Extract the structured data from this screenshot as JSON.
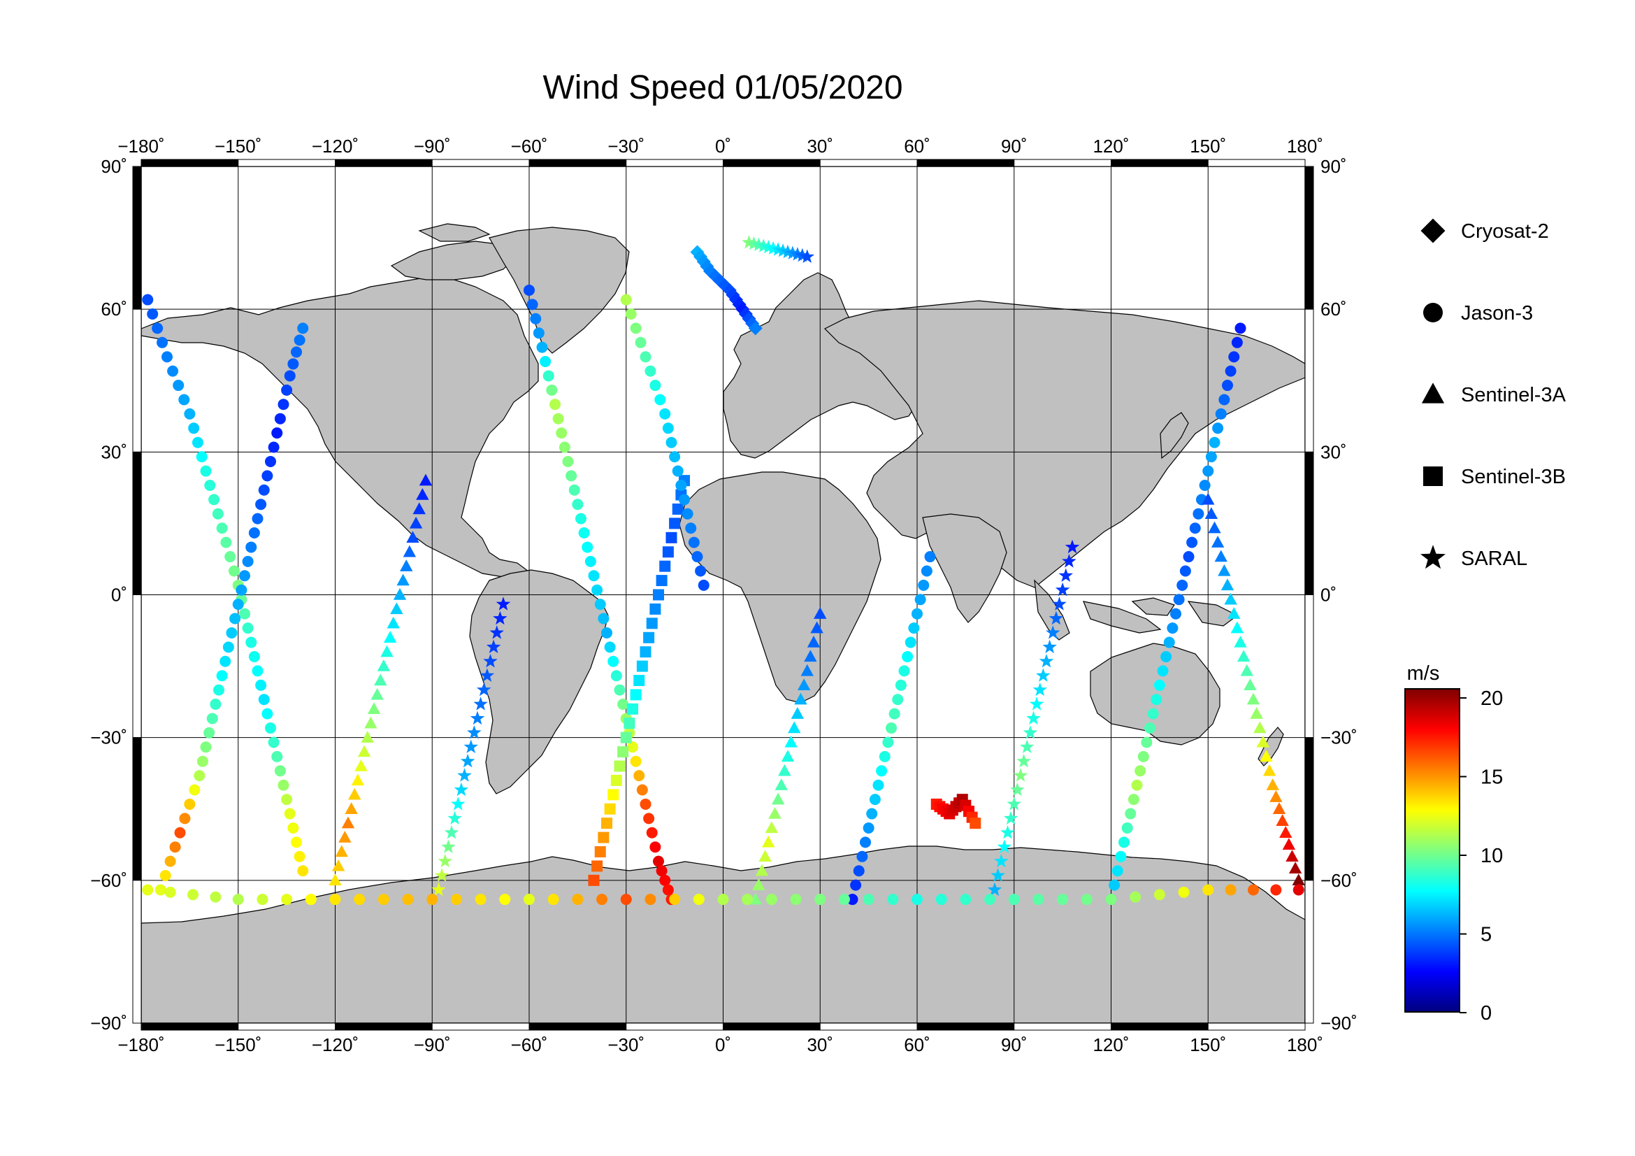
{
  "title": "Wind Speed 01/05/2020",
  "map": {
    "projection": "equirectangular",
    "lon_range": [
      -180,
      180
    ],
    "lat_range": [
      -90,
      90
    ],
    "land_color": "#c0c0c0",
    "ocean_color": "#ffffff",
    "grid": true
  },
  "axes": {
    "lon_ticks": [
      {
        "value": -180,
        "label": "−180˚"
      },
      {
        "value": -150,
        "label": "−150˚"
      },
      {
        "value": -120,
        "label": "−120˚"
      },
      {
        "value": -90,
        "label": "−90˚"
      },
      {
        "value": -60,
        "label": "−60˚"
      },
      {
        "value": -30,
        "label": "−30˚"
      },
      {
        "value": 0,
        "label": "0˚"
      },
      {
        "value": 30,
        "label": "30˚"
      },
      {
        "value": 60,
        "label": "60˚"
      },
      {
        "value": 90,
        "label": "90˚"
      },
      {
        "value": 120,
        "label": "120˚"
      },
      {
        "value": 150,
        "label": "150˚"
      },
      {
        "value": 180,
        "label": "180˚"
      }
    ],
    "lat_ticks": [
      {
        "value": 90,
        "label": "90˚"
      },
      {
        "value": 60,
        "label": "60˚"
      },
      {
        "value": 30,
        "label": "30˚"
      },
      {
        "value": 0,
        "label": "0˚"
      },
      {
        "value": -30,
        "label": "−30˚"
      },
      {
        "value": -60,
        "label": "−60˚"
      },
      {
        "value": -90,
        "label": "−90˚"
      }
    ]
  },
  "legend": [
    {
      "name": "Cryosat-2",
      "symbol": "diamond"
    },
    {
      "name": "Jason-3",
      "symbol": "circle"
    },
    {
      "name": "Sentinel-3A",
      "symbol": "triangle"
    },
    {
      "name": "Sentinel-3B",
      "symbol": "square"
    },
    {
      "name": "SARAL",
      "symbol": "star"
    }
  ],
  "colorbar": {
    "unit": "m/s",
    "min": 0,
    "max": 20,
    "ticks": [
      {
        "value": 20,
        "label": "20"
      },
      {
        "value": 15,
        "label": "15"
      },
      {
        "value": 10,
        "label": "10"
      },
      {
        "value": 5,
        "label": "5"
      },
      {
        "value": 0,
        "label": "0"
      }
    ],
    "colormap": [
      "#00007f",
      "#0000ff",
      "#007fff",
      "#00ffff",
      "#7fff7f",
      "#ffff00",
      "#ff7f00",
      "#ff0000",
      "#7f0000"
    ]
  },
  "chart_data": {
    "type": "scatter",
    "title": "Wind Speed 01/05/2020",
    "xlabel": "",
    "ylabel": "",
    "xlim": [
      -180,
      180
    ],
    "ylim": [
      -90,
      90
    ],
    "value_unit": "m/s",
    "tracks": [
      {
        "satellite": "Jason-3",
        "symbol": "circle",
        "points": [
          [
            -178,
            62,
            4
          ],
          [
            -172,
            50,
            5
          ],
          [
            -165,
            38,
            6
          ],
          [
            -160,
            26,
            8
          ],
          [
            -155,
            14,
            9
          ],
          [
            -150,
            2,
            10
          ],
          [
            -146,
            -10,
            8
          ],
          [
            -142,
            -22,
            7
          ],
          [
            -138,
            -34,
            9
          ],
          [
            -134,
            -46,
            12
          ],
          [
            -130,
            -58,
            13
          ]
        ]
      },
      {
        "satellite": "Jason-3",
        "symbol": "circle",
        "points": [
          [
            -174,
            -62,
            12
          ],
          [
            -168,
            -50,
            16
          ],
          [
            -162,
            -38,
            11
          ],
          [
            -158,
            -26,
            9
          ],
          [
            -154,
            -14,
            7
          ],
          [
            -150,
            -2,
            6
          ],
          [
            -146,
            10,
            5
          ],
          [
            -142,
            22,
            4
          ],
          [
            -138,
            34,
            3
          ],
          [
            -134,
            46,
            4
          ],
          [
            -130,
            56,
            5
          ]
        ]
      },
      {
        "satellite": "Sentinel-3A",
        "symbol": "triangle",
        "points": [
          [
            -120,
            -60,
            13
          ],
          [
            -116,
            -48,
            15
          ],
          [
            -112,
            -36,
            12
          ],
          [
            -108,
            -24,
            10
          ],
          [
            -104,
            -12,
            8
          ],
          [
            -100,
            0,
            6
          ],
          [
            -96,
            12,
            4
          ],
          [
            -92,
            24,
            3
          ]
        ]
      },
      {
        "satellite": "SARAL",
        "symbol": "star",
        "points": [
          [
            -88,
            -62,
            12
          ],
          [
            -84,
            -50,
            9
          ],
          [
            -80,
            -38,
            6
          ],
          [
            -76,
            -26,
            5
          ],
          [
            -72,
            -14,
            4
          ],
          [
            -68,
            -2,
            3
          ]
        ]
      },
      {
        "satellite": "Jason-3",
        "symbol": "circle",
        "points": [
          [
            -60,
            64,
            4
          ],
          [
            -56,
            52,
            6
          ],
          [
            -52,
            40,
            11
          ],
          [
            -48,
            28,
            10
          ],
          [
            -44,
            16,
            8
          ],
          [
            -40,
            4,
            7
          ],
          [
            -36,
            -8,
            6
          ],
          [
            -32,
            -20,
            9
          ],
          [
            -28,
            -32,
            12
          ],
          [
            -24,
            -44,
            16
          ],
          [
            -20,
            -56,
            18
          ],
          [
            -16,
            -64,
            17
          ]
        ]
      },
      {
        "satellite": "Sentinel-3B",
        "symbol": "square",
        "points": [
          [
            -40,
            -60,
            16
          ],
          [
            -36,
            -48,
            14
          ],
          [
            -32,
            -36,
            11
          ],
          [
            -28,
            -24,
            8
          ],
          [
            -24,
            -12,
            6
          ],
          [
            -20,
            0,
            5
          ],
          [
            -16,
            12,
            4
          ],
          [
            -12,
            24,
            5
          ]
        ]
      },
      {
        "satellite": "Jason-3",
        "symbol": "circle",
        "points": [
          [
            -30,
            62,
            11
          ],
          [
            -24,
            50,
            9
          ],
          [
            -18,
            38,
            7
          ],
          [
            -14,
            26,
            6
          ],
          [
            -10,
            14,
            5
          ],
          [
            -6,
            2,
            4
          ]
        ]
      },
      {
        "satellite": "Sentinel-3A",
        "symbol": "triangle",
        "points": [
          [
            10,
            -64,
            10
          ],
          [
            14,
            -52,
            12
          ],
          [
            18,
            -40,
            9
          ],
          [
            22,
            -28,
            7
          ],
          [
            26,
            -16,
            5
          ],
          [
            30,
            -4,
            4
          ]
        ]
      },
      {
        "satellite": "Jason-3",
        "symbol": "circle",
        "points": [
          [
            40,
            -64,
            3
          ],
          [
            44,
            -52,
            5
          ],
          [
            48,
            -40,
            7
          ],
          [
            52,
            -28,
            9
          ],
          [
            56,
            -16,
            8
          ],
          [
            60,
            -4,
            6
          ],
          [
            64,
            8,
            5
          ]
        ]
      },
      {
        "satellite": "Sentinel-3B",
        "symbol": "square",
        "points": [
          [
            66,
            -44,
            17
          ],
          [
            70,
            -46,
            18
          ],
          [
            74,
            -43,
            19
          ],
          [
            78,
            -48,
            16
          ]
        ]
      },
      {
        "satellite": "SARAL",
        "symbol": "star",
        "points": [
          [
            84,
            -62,
            6
          ],
          [
            88,
            -50,
            8
          ],
          [
            92,
            -38,
            10
          ],
          [
            96,
            -26,
            8
          ],
          [
            100,
            -14,
            6
          ],
          [
            104,
            -2,
            4
          ],
          [
            108,
            10,
            3
          ]
        ]
      },
      {
        "satellite": "Jason-3",
        "symbol": "circle",
        "points": [
          [
            120,
            -64,
            6
          ],
          [
            124,
            -52,
            8
          ],
          [
            128,
            -40,
            11
          ],
          [
            132,
            -28,
            9
          ],
          [
            136,
            -16,
            7
          ],
          [
            140,
            -4,
            5
          ],
          [
            144,
            8,
            4
          ],
          [
            148,
            20,
            5
          ],
          [
            152,
            32,
            6
          ],
          [
            156,
            44,
            4
          ],
          [
            160,
            56,
            3
          ]
        ]
      },
      {
        "satellite": "Sentinel-3A",
        "symbol": "triangle",
        "points": [
          [
            178,
            -60,
            20
          ],
          [
            174,
            -50,
            17
          ],
          [
            170,
            -40,
            14
          ],
          [
            166,
            -28,
            11
          ],
          [
            162,
            -16,
            9
          ],
          [
            158,
            -4,
            7
          ],
          [
            154,
            8,
            5
          ],
          [
            150,
            20,
            4
          ]
        ]
      },
      {
        "satellite": "Jason-3",
        "symbol": "circle",
        "points": [
          [
            -178,
            -62,
            12
          ],
          [
            -150,
            -64,
            11
          ],
          [
            -120,
            -64,
            13
          ],
          [
            -90,
            -64,
            14
          ],
          [
            -60,
            -64,
            12
          ],
          [
            -30,
            -64,
            16
          ],
          [
            0,
            -64,
            11
          ],
          [
            30,
            -64,
            10
          ],
          [
            60,
            -64,
            8
          ],
          [
            90,
            -64,
            9
          ],
          [
            120,
            -64,
            10
          ],
          [
            150,
            -62,
            13
          ],
          [
            178,
            -62,
            18
          ]
        ]
      },
      {
        "satellite": "Cryosat-2",
        "symbol": "diamond",
        "points": [
          [
            -8,
            72,
            6
          ],
          [
            -4,
            68,
            5
          ],
          [
            2,
            64,
            4
          ],
          [
            6,
            60,
            3
          ],
          [
            10,
            56,
            5
          ]
        ]
      },
      {
        "satellite": "SARAL",
        "symbol": "star",
        "points": [
          [
            8,
            74,
            10
          ],
          [
            14,
            73,
            8
          ],
          [
            20,
            72,
            6
          ],
          [
            26,
            71,
            4
          ]
        ]
      }
    ]
  }
}
